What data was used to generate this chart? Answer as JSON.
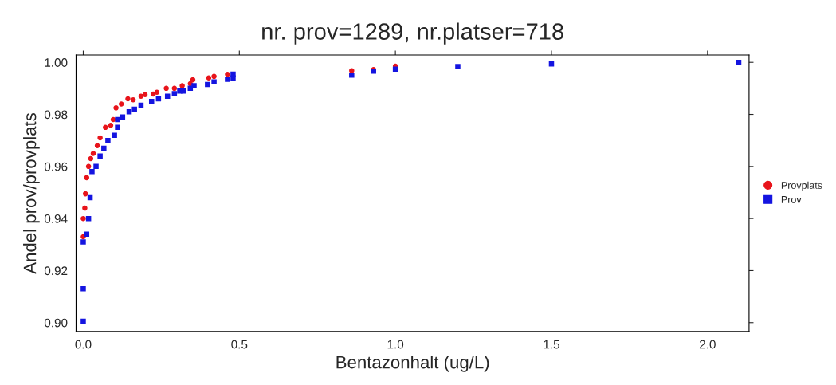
{
  "chart_data": {
    "type": "scatter",
    "title": "nr. prov=1289, nr.platser=718",
    "xlabel": "Bentazonhalt (ug/L)",
    "ylabel": "Andel prov/provplats",
    "xlim": [
      -0.023,
      2.133
    ],
    "ylim": [
      0.8966,
      1.0028
    ],
    "xticks": [
      {
        "value": 0,
        "label": "0.0"
      },
      0.5,
      {
        "value": 1,
        "label": "1.0"
      },
      1.5,
      {
        "value": 2,
        "label": "2.0"
      }
    ],
    "yticks": [
      {
        "value": 0.9,
        "label": "0.90"
      },
      0.92,
      0.94,
      0.96,
      0.98,
      {
        "value": 1,
        "label": "1.00"
      }
    ],
    "grid": false,
    "legend": "right",
    "series": [
      {
        "name": "Provplats",
        "color": "#e8141b",
        "marker": "circle",
        "x": [
          0,
          0,
          0.005,
          0.007,
          0.011,
          0.017,
          0.024,
          0.032,
          0.045,
          0.054,
          0.071,
          0.088,
          0.096,
          0.105,
          0.122,
          0.143,
          0.16,
          0.185,
          0.198,
          0.224,
          0.236,
          0.266,
          0.292,
          0.317,
          0.343,
          0.351,
          0.402,
          0.419,
          0.462,
          0.479,
          0.86,
          0.93,
          1.0
        ],
        "values": [
          0.933,
          0.94,
          0.944,
          0.9495,
          0.9557,
          0.96,
          0.963,
          0.965,
          0.968,
          0.971,
          0.975,
          0.9758,
          0.978,
          0.9825,
          0.984,
          0.986,
          0.9856,
          0.987,
          0.9876,
          0.9878,
          0.9885,
          0.99,
          0.99,
          0.991,
          0.9918,
          0.9933,
          0.994,
          0.9946,
          0.9954,
          null,
          0.9968,
          0.9972,
          0.9985
        ]
      },
      {
        "name": "Prov",
        "color": "#1414e0",
        "marker": "square",
        "x": [
          0,
          0,
          0,
          0.011,
          0.017,
          0.022,
          0.028,
          0.041,
          0.054,
          0.066,
          0.079,
          0.1,
          0.11,
          0.11,
          0.126,
          0.147,
          0.164,
          0.185,
          0.219,
          0.241,
          0.27,
          0.292,
          0.309,
          0.321,
          0.343,
          0.355,
          0.398,
          0.419,
          0.462,
          0.48,
          0.48,
          0.86,
          0.93,
          1.0,
          1.2,
          1.5,
          2.1
        ],
        "values": [
          0.9005,
          0.913,
          0.931,
          0.934,
          0.94,
          0.948,
          0.958,
          0.96,
          0.964,
          0.967,
          0.97,
          0.972,
          0.975,
          0.978,
          0.979,
          0.981,
          0.982,
          0.9835,
          0.985,
          0.986,
          0.987,
          0.988,
          0.989,
          0.989,
          0.99,
          0.991,
          0.9915,
          0.9925,
          0.9935,
          0.994,
          0.9955,
          0.9951,
          0.9966,
          0.9974,
          0.9984,
          0.9994,
          1.0
        ]
      }
    ]
  }
}
